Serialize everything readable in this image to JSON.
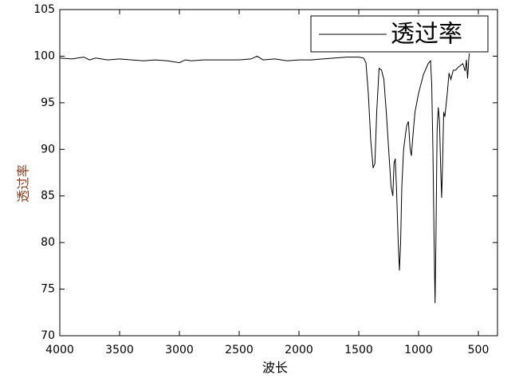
{
  "chart_data": {
    "type": "line",
    "x_label": "波长",
    "y_label": "透过率",
    "x": [
      4000,
      3900,
      3800,
      3750,
      3700,
      3600,
      3500,
      3400,
      3300,
      3200,
      3100,
      3000,
      2950,
      2900,
      2800,
      2700,
      2600,
      2500,
      2400,
      2350,
      2300,
      2200,
      2100,
      2000,
      1900,
      1800,
      1700,
      1600,
      1500,
      1460,
      1440,
      1420,
      1400,
      1380,
      1365,
      1350,
      1330,
      1310,
      1290,
      1270,
      1250,
      1230,
      1215,
      1205,
      1195,
      1185,
      1170,
      1160,
      1150,
      1140,
      1125,
      1100,
      1085,
      1070,
      1060,
      1050,
      1030,
      1000,
      960,
      920,
      900,
      890,
      880,
      870,
      862,
      855,
      845,
      835,
      825,
      815,
      807,
      800,
      790,
      780,
      760,
      745,
      730,
      710,
      690,
      670,
      650,
      630,
      610,
      600,
      590,
      580,
      575
    ],
    "series": [
      {
        "name": "透过率",
        "color": "#000000",
        "values": [
          99.8,
          99.7,
          99.9,
          99.6,
          99.8,
          99.6,
          99.7,
          99.6,
          99.5,
          99.6,
          99.5,
          99.3,
          99.6,
          99.5,
          99.6,
          99.6,
          99.6,
          99.6,
          99.7,
          100.0,
          99.6,
          99.7,
          99.5,
          99.6,
          99.6,
          99.7,
          99.8,
          99.9,
          99.9,
          99.8,
          99.3,
          96.0,
          91.0,
          88.0,
          88.5,
          94.0,
          98.7,
          98.5,
          97.5,
          94.0,
          90.0,
          86.0,
          85.0,
          88.5,
          89.0,
          86.0,
          80.0,
          77.0,
          80.0,
          86.0,
          90.0,
          92.5,
          93.0,
          90.0,
          89.3,
          91.0,
          94.0,
          96.0,
          98.0,
          99.2,
          99.5,
          97.0,
          90.0,
          80.0,
          73.5,
          80.0,
          92.0,
          94.5,
          93.0,
          88.0,
          84.8,
          88.0,
          94.0,
          93.5,
          96.0,
          98.2,
          97.5,
          98.5,
          98.5,
          98.8,
          99.0,
          99.2,
          98.4,
          99.6,
          97.6,
          99.7,
          100.3
        ]
      }
    ],
    "xlim": [
      4000,
      340
    ],
    "ylim": [
      70,
      105
    ],
    "xticks": [
      4000,
      3500,
      3000,
      2500,
      2000,
      1500,
      1000,
      500
    ],
    "yticks": [
      70,
      75,
      80,
      85,
      90,
      95,
      100,
      105
    ],
    "legend": "upper right"
  }
}
